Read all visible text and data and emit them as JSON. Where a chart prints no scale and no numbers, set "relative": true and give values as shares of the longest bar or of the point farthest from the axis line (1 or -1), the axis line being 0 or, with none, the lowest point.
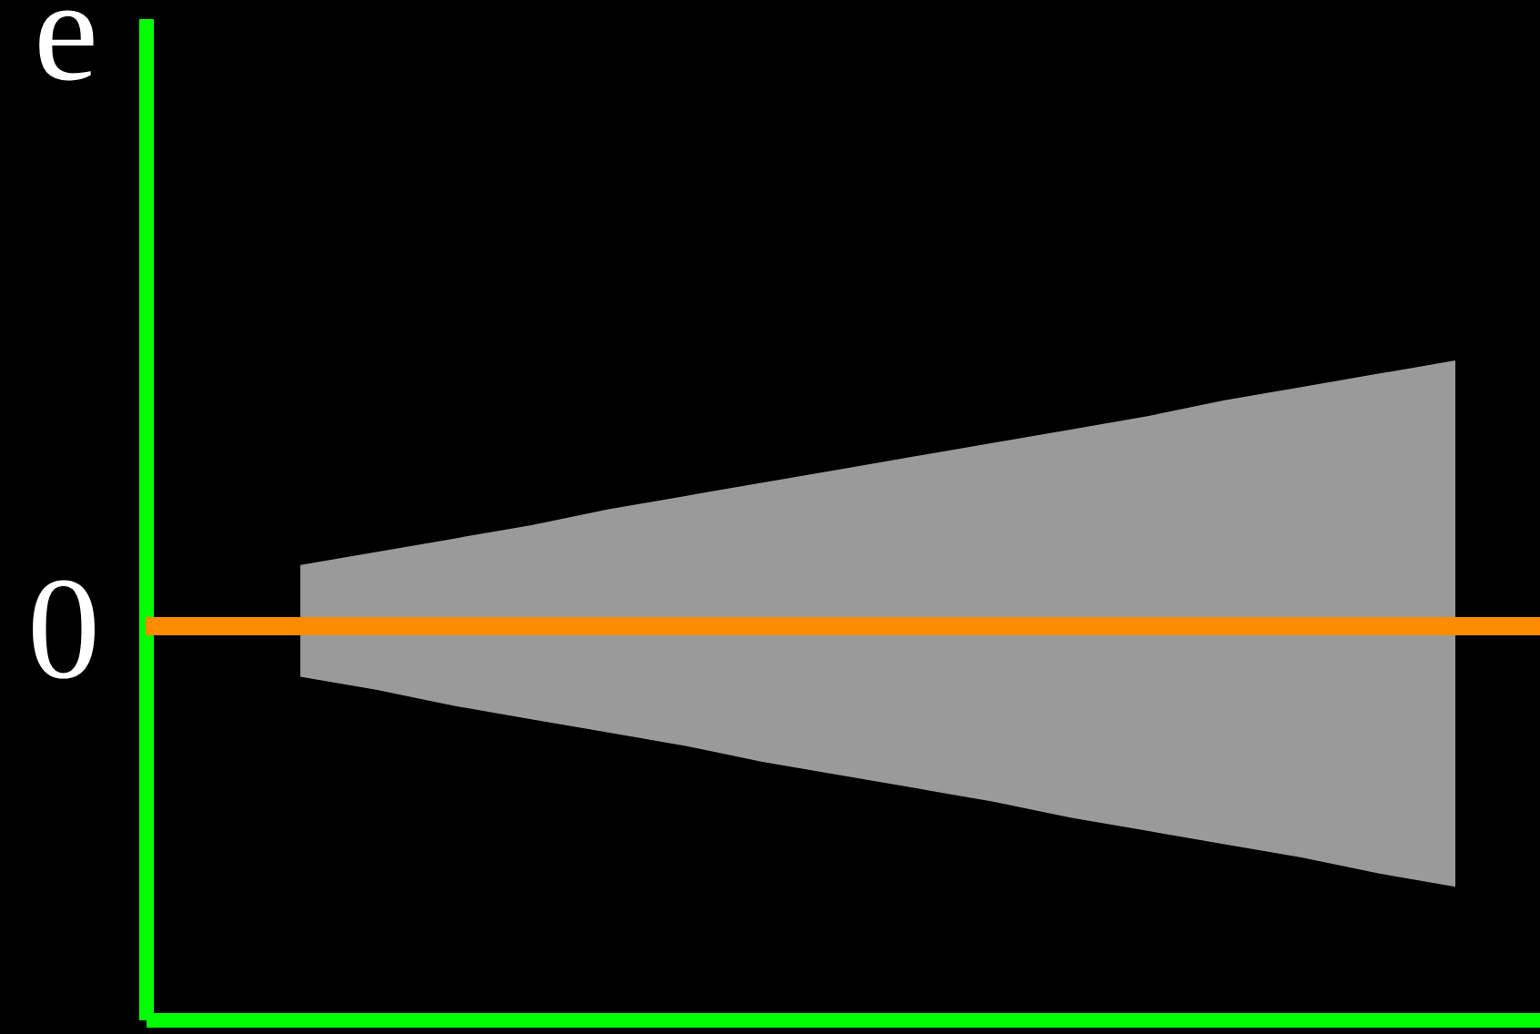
{
  "chart_data": {
    "type": "area",
    "ylabel": "e",
    "relative": true,
    "categories": [
      null,
      null,
      null,
      null,
      null,
      null,
      null,
      null,
      null,
      null,
      null,
      null,
      null,
      null,
      null,
      null
    ],
    "series": [
      {
        "color": "#9a9a9a",
        "values": [
          0.23,
          0.28,
          0.33,
          0.38,
          0.44,
          0.49,
          0.54,
          0.59,
          0.64,
          0.69,
          0.74,
          0.79,
          0.85,
          0.9,
          0.95,
          1.0
        ]
      },
      {
        "color": "#9a9a9a",
        "values": [
          -0.19,
          -0.24,
          -0.3,
          -0.35,
          -0.4,
          -0.45,
          -0.51,
          -0.56,
          -0.61,
          -0.66,
          -0.72,
          -0.77,
          -0.82,
          -0.87,
          -0.93,
          -0.98
        ]
      }
    ],
    "ref_lines": [
      {
        "axis": "y",
        "value": 0,
        "label": "0",
        "color": "#ff8c00"
      }
    ]
  }
}
